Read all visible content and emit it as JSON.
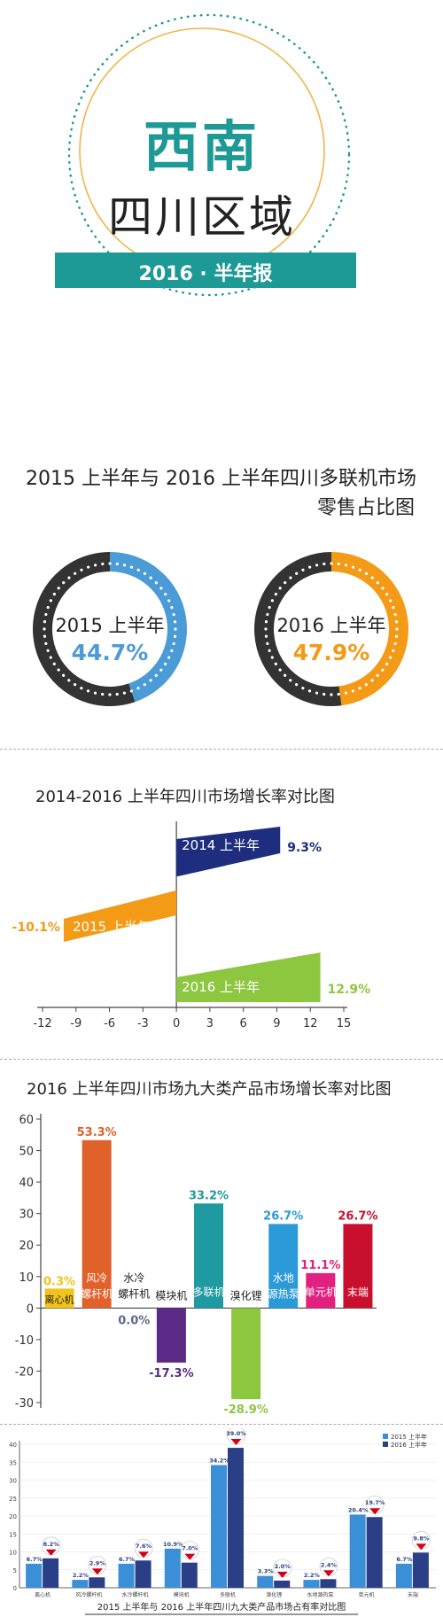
{
  "header": {
    "title_line1": "西南",
    "title_line2": "四川区域",
    "banner": "2016 · 半年报"
  },
  "colors": {
    "teal": "#1d9a96",
    "orange": "#f39a16",
    "blue": "#4a9bd6",
    "dark": "#333333",
    "navy": "#1e2d7d",
    "green": "#8dc63f"
  },
  "section1": {
    "title_line1": "2015 上半年与 2016 上半年四川多联机市场",
    "title_line2": "零售占比图"
  },
  "section2": {
    "title": "2014-2016 上半年四川市场增长率对比图"
  },
  "section3": {
    "title": "2016 上半年四川市场九大类产品市场增长率对比图"
  },
  "section4": {
    "caption": "2015 上半年与 2016 上半年四川九大类产品市场占有率对比图"
  },
  "chart_data": [
    {
      "type": "pie",
      "title": "2015 上半年",
      "slices": [
        {
          "value": 44.7,
          "label": "44.7%",
          "color": "#4a9bd6"
        },
        {
          "value": 55.3,
          "color": "#333333"
        }
      ]
    },
    {
      "type": "pie",
      "title": "2016 上半年",
      "slices": [
        {
          "value": 47.9,
          "label": "47.9%",
          "color": "#f39a16"
        },
        {
          "value": 52.1,
          "color": "#333333"
        }
      ]
    },
    {
      "type": "bar",
      "orientation": "horizontal",
      "categories": [
        "2014 上半年",
        "2015 上半年",
        "2016 上半年"
      ],
      "values": [
        9.3,
        -10.1,
        12.9
      ],
      "labels": [
        "9.3%",
        "-10.1%",
        "12.9%"
      ],
      "colors": [
        "#1e2d7d",
        "#f39a16",
        "#8dc63f"
      ],
      "xlim": [
        -12,
        15
      ],
      "xticks": [
        "-12",
        "-9",
        "-6",
        "-3",
        "0",
        "3",
        "6",
        "9",
        "12",
        "15"
      ]
    },
    {
      "type": "bar",
      "categories": [
        "离心机",
        "风冷螺杆机",
        "水冷螺杆机",
        "模块机",
        "多联机",
        "溴化锂",
        "水地源热泵",
        "单元机",
        "末端"
      ],
      "values": [
        0.3,
        53.3,
        0.0,
        -17.3,
        33.2,
        -28.9,
        26.7,
        11.1,
        26.7
      ],
      "labels": [
        "0.3%",
        "53.3%",
        "0.0%",
        "-17.3%",
        "33.2%",
        "-28.9%",
        "26.7%",
        "11.1%",
        "26.7%"
      ],
      "colors": [
        "#f2c31a",
        "#e0622a",
        "#5a6b8c",
        "#5b2a86",
        "#1f9aa0",
        "#8dc63f",
        "#2b9ad8",
        "#e2207f",
        "#c8102e"
      ],
      "ylim": [
        -30,
        60
      ],
      "yticks": [
        "60",
        "50",
        "40",
        "30",
        "20",
        "10",
        "0",
        "-10",
        "-20",
        "-30"
      ]
    },
    {
      "type": "bar",
      "title": "2015 上半年与 2016 上半年四川九大类产品市场占有率对比图",
      "categories": [
        "离心机",
        "风冷螺杆机",
        "水冷螺杆机",
        "模块机",
        "多联机",
        "溴化锂",
        "水地源热泵",
        "单元机",
        "末端"
      ],
      "series": [
        {
          "name": "2015 上半年",
          "values": [
            6.7,
            2.2,
            6.7,
            10.9,
            34.2,
            3.3,
            2.2,
            20.4,
            6.7
          ],
          "labels": [
            "6.7%",
            "2.2%",
            "6.7%",
            "10.9%",
            "34.2%",
            "3.3%",
            "2.2%",
            "20.4%",
            "6.7%"
          ]
        },
        {
          "name": "2016 上半年",
          "values": [
            8.2,
            2.9,
            7.6,
            7.0,
            39.0,
            2.0,
            2.4,
            19.7,
            9.8
          ],
          "labels": [
            "8.2%",
            "2.9%",
            "7.6%",
            "7.0%",
            "39.0%",
            "2.0%",
            "2.4%",
            "19.7%",
            "9.8%"
          ]
        }
      ],
      "ylim": [
        0,
        40
      ],
      "yticks": [
        "40",
        "35",
        "30",
        "25",
        "20",
        "15",
        "10",
        "5",
        "0"
      ]
    }
  ]
}
